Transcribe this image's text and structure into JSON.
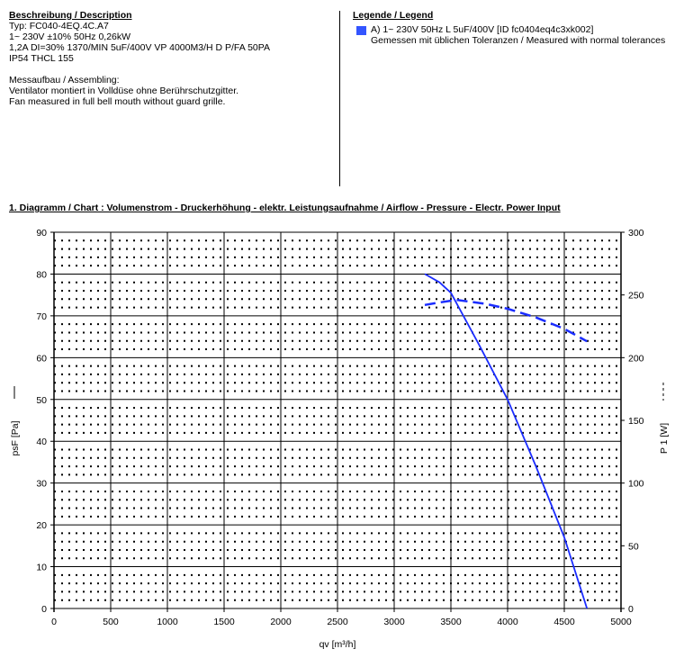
{
  "description": {
    "heading": "Beschreibung / Description",
    "lines": [
      "Typ:  FC040-4EQ.4C.A7",
      "1~  230V  ±10%  50Hz  0,26kW",
      "1,2A  DI=30%  1370/MIN   5uF/400V    VP 4000M3/H D P/FA 50PA",
      "IP54   THCL 155"
    ],
    "assembly_heading": "Messaufbau / Assembling:",
    "assembly_lines": [
      "Ventilator montiert in Volldüse ohne Berührschutzgitter.",
      "Fan measured in full bell mouth without guard grille."
    ]
  },
  "legend": {
    "heading": "Legende / Legend",
    "entry": "A) 1~ 230V 50Hz L 5uF/400V [ID fc0404eq4c3xk002]",
    "note": "Gemessen mit üblichen Toleranzen / Measured with normal tolerances",
    "color": "#3355ff"
  },
  "chart_data": {
    "type": "line",
    "title": "1. Diagramm / Chart :   Volumenstrom - Druckerhöhung - elektr. Leistungsaufnahme / Airflow - Pressure - Electr. Power Input",
    "xlabel": "qv [m³/h]",
    "ylabel": "psF [Pa]",
    "y2label": "P 1 [W]",
    "xlim": [
      0,
      5000
    ],
    "ylim": [
      0,
      90
    ],
    "y2lim": [
      0,
      300
    ],
    "xticks": [
      "0",
      "500",
      "1000",
      "1500",
      "2000",
      "2500",
      "3000",
      "3500",
      "4000",
      "4500",
      "5000"
    ],
    "yticks": [
      "0",
      "10",
      "20",
      "30",
      "40",
      "50",
      "60",
      "70",
      "80",
      "90"
    ],
    "y2ticks": [
      "0",
      "50",
      "100",
      "150",
      "200",
      "250",
      "300"
    ],
    "grid": true,
    "series": [
      {
        "axis": "left",
        "style": "solid",
        "color": "#1a2cff",
        "x": [
          3270,
          3400,
          3500,
          3750,
          4000,
          4250,
          4500,
          4700
        ],
        "y": [
          80,
          78,
          75.5,
          63,
          50,
          34,
          17,
          0
        ]
      },
      {
        "axis": "right",
        "style": "dashed",
        "color": "#1a2cff",
        "x": [
          3270,
          3400,
          3550,
          3800,
          4000,
          4250,
          4500,
          4700
        ],
        "y": [
          242,
          244,
          246,
          243,
          239,
          232,
          223,
          213
        ]
      }
    ]
  }
}
